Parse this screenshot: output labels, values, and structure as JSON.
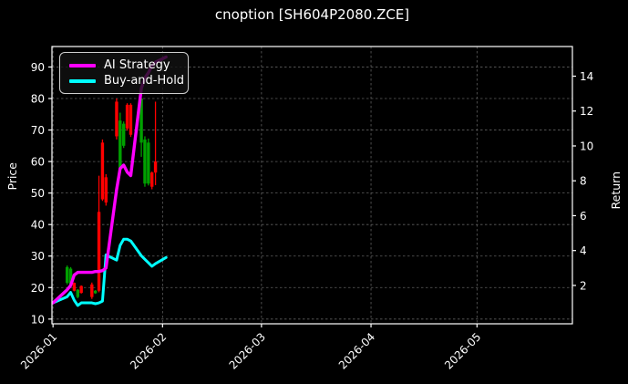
{
  "chart_data": {
    "type": "candlestick+line",
    "title": "cnoption [SH604P2080.ZCE]",
    "legend_position": "upper-left",
    "grid": true,
    "colors": {
      "background": "#000000",
      "text": "#ffffff",
      "grid": "#5f5f5f",
      "spine": "#ffffff",
      "candle_up": "#00a000",
      "candle_down": "#ff0000"
    },
    "x_axis": {
      "tick_labels": [
        "2026-01",
        "2026-02",
        "2026-03",
        "2026-04",
        "2026-05"
      ],
      "tick_days": [
        0,
        31,
        59,
        90,
        120
      ],
      "lim_days": [
        -0.3,
        147
      ]
    },
    "price_axis": {
      "label": "Price",
      "ticks": [
        10,
        20,
        30,
        40,
        50,
        60,
        70,
        80,
        90
      ],
      "lim": [
        8.5,
        96.5
      ]
    },
    "return_axis": {
      "label": "Return",
      "ticks": [
        2,
        4,
        6,
        8,
        10,
        12,
        14
      ],
      "lim": [
        -0.2,
        15.7
      ]
    },
    "dates": [
      "2026-01-01",
      "2026-01-05",
      "2026-01-06",
      "2026-01-07",
      "2026-01-08",
      "2026-01-09",
      "2026-01-12",
      "2026-01-13",
      "2026-01-14",
      "2026-01-15",
      "2026-01-16",
      "2026-01-19",
      "2026-01-20",
      "2026-01-21",
      "2026-01-22",
      "2026-01-23",
      "2026-01-26",
      "2026-01-27",
      "2026-01-28",
      "2026-01-29",
      "2026-01-30",
      "2026-02-02"
    ],
    "days": [
      0,
      4,
      5,
      6,
      7,
      8,
      11,
      12,
      13,
      14,
      15,
      18,
      19,
      20,
      21,
      22,
      25,
      26,
      27,
      28,
      29,
      32
    ],
    "series": [
      {
        "name": "AI Strategy",
        "axis": "return",
        "color": "#ff00ff",
        "width": 3.4,
        "values": [
          1.0,
          1.75,
          2.0,
          2.6,
          2.75,
          2.75,
          2.75,
          2.8,
          2.8,
          2.85,
          3.0,
          7.5,
          8.7,
          8.9,
          8.5,
          8.3,
          13.3,
          13.9,
          14.2,
          14.6,
          14.8,
          15.1
        ]
      },
      {
        "name": "Buy-and-Hold",
        "axis": "return",
        "color": "#00ffff",
        "width": 3.0,
        "values": [
          1.0,
          1.35,
          1.6,
          1.15,
          0.85,
          1.0,
          1.0,
          0.95,
          1.0,
          1.1,
          3.75,
          3.45,
          4.3,
          4.65,
          4.65,
          4.55,
          3.7,
          3.5,
          3.3,
          3.1,
          3.25,
          3.6
        ]
      }
    ],
    "candles_ohlc_by_day": [
      [
        4,
        21.5,
        27.0,
        21.0,
        26.5
      ],
      [
        5,
        21.0,
        26.5,
        20.5,
        26.0
      ],
      [
        6,
        21.5,
        21.6,
        18.8,
        19.0
      ],
      [
        7,
        17.0,
        19.5,
        16.6,
        19.3
      ],
      [
        8,
        20.5,
        20.7,
        18.1,
        18.3
      ],
      [
        11,
        21.0,
        21.6,
        16.4,
        17.0
      ],
      [
        12,
        18.2,
        19.2,
        18.0,
        19.0
      ],
      [
        13,
        44.0,
        55.5,
        18.5,
        19.0
      ],
      [
        14,
        66.0,
        67.0,
        47.5,
        48.0
      ],
      [
        15,
        55.0,
        56.0,
        46.0,
        47.0
      ],
      [
        18,
        79.0,
        80.0,
        67.0,
        68.0
      ],
      [
        19,
        58.0,
        75.5,
        56.5,
        73.0
      ],
      [
        20,
        65.0,
        72.7,
        64.3,
        72.0
      ],
      [
        21,
        78.0,
        78.5,
        69.8,
        70.5
      ],
      [
        22,
        78.0,
        78.5,
        67.8,
        68.5
      ],
      [
        25,
        66.0,
        80.3,
        61.5,
        80.0
      ],
      [
        26,
        53.0,
        68.0,
        52.0,
        67.0
      ],
      [
        27,
        53.0,
        67.3,
        52.4,
        66.0
      ],
      [
        28,
        56.5,
        56.8,
        51.2,
        52.0
      ],
      [
        29,
        60.0,
        79.0,
        52.5,
        56.5
      ]
    ]
  }
}
